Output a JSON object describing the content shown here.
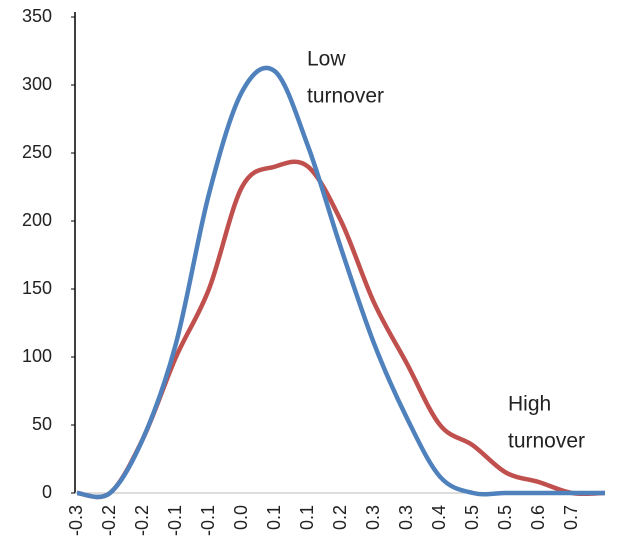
{
  "chart_data": {
    "type": "line",
    "categories": [
      "-0.3",
      "-0.2",
      "-0.2",
      "-0.1",
      "-0.1",
      "0.0",
      "0.1",
      "0.1",
      "0.2",
      "0.3",
      "0.3",
      "0.4",
      "0.5",
      "0.5",
      "0.6",
      "0.7",
      null
    ],
    "series": [
      {
        "color": "#4f81bd",
        "values": [
          0,
          0,
          40,
          110,
          220,
          295,
          310,
          255,
          180,
          110,
          55,
          12,
          0,
          0,
          0,
          0,
          0
        ]
      },
      {
        "color": "#c0504d",
        "values": [
          0,
          0,
          40,
          100,
          150,
          225,
          240,
          240,
          200,
          140,
          95,
          50,
          35,
          15,
          8,
          0,
          0
        ]
      }
    ],
    "annotations": [
      {
        "lines": [
          "Low",
          "turnover"
        ]
      },
      {
        "lines": [
          "High",
          "turnover"
        ]
      }
    ],
    "ylim": [
      0,
      350
    ],
    "yticks": [
      0,
      50,
      100,
      150,
      200,
      250,
      300,
      350
    ],
    "grid": false
  }
}
